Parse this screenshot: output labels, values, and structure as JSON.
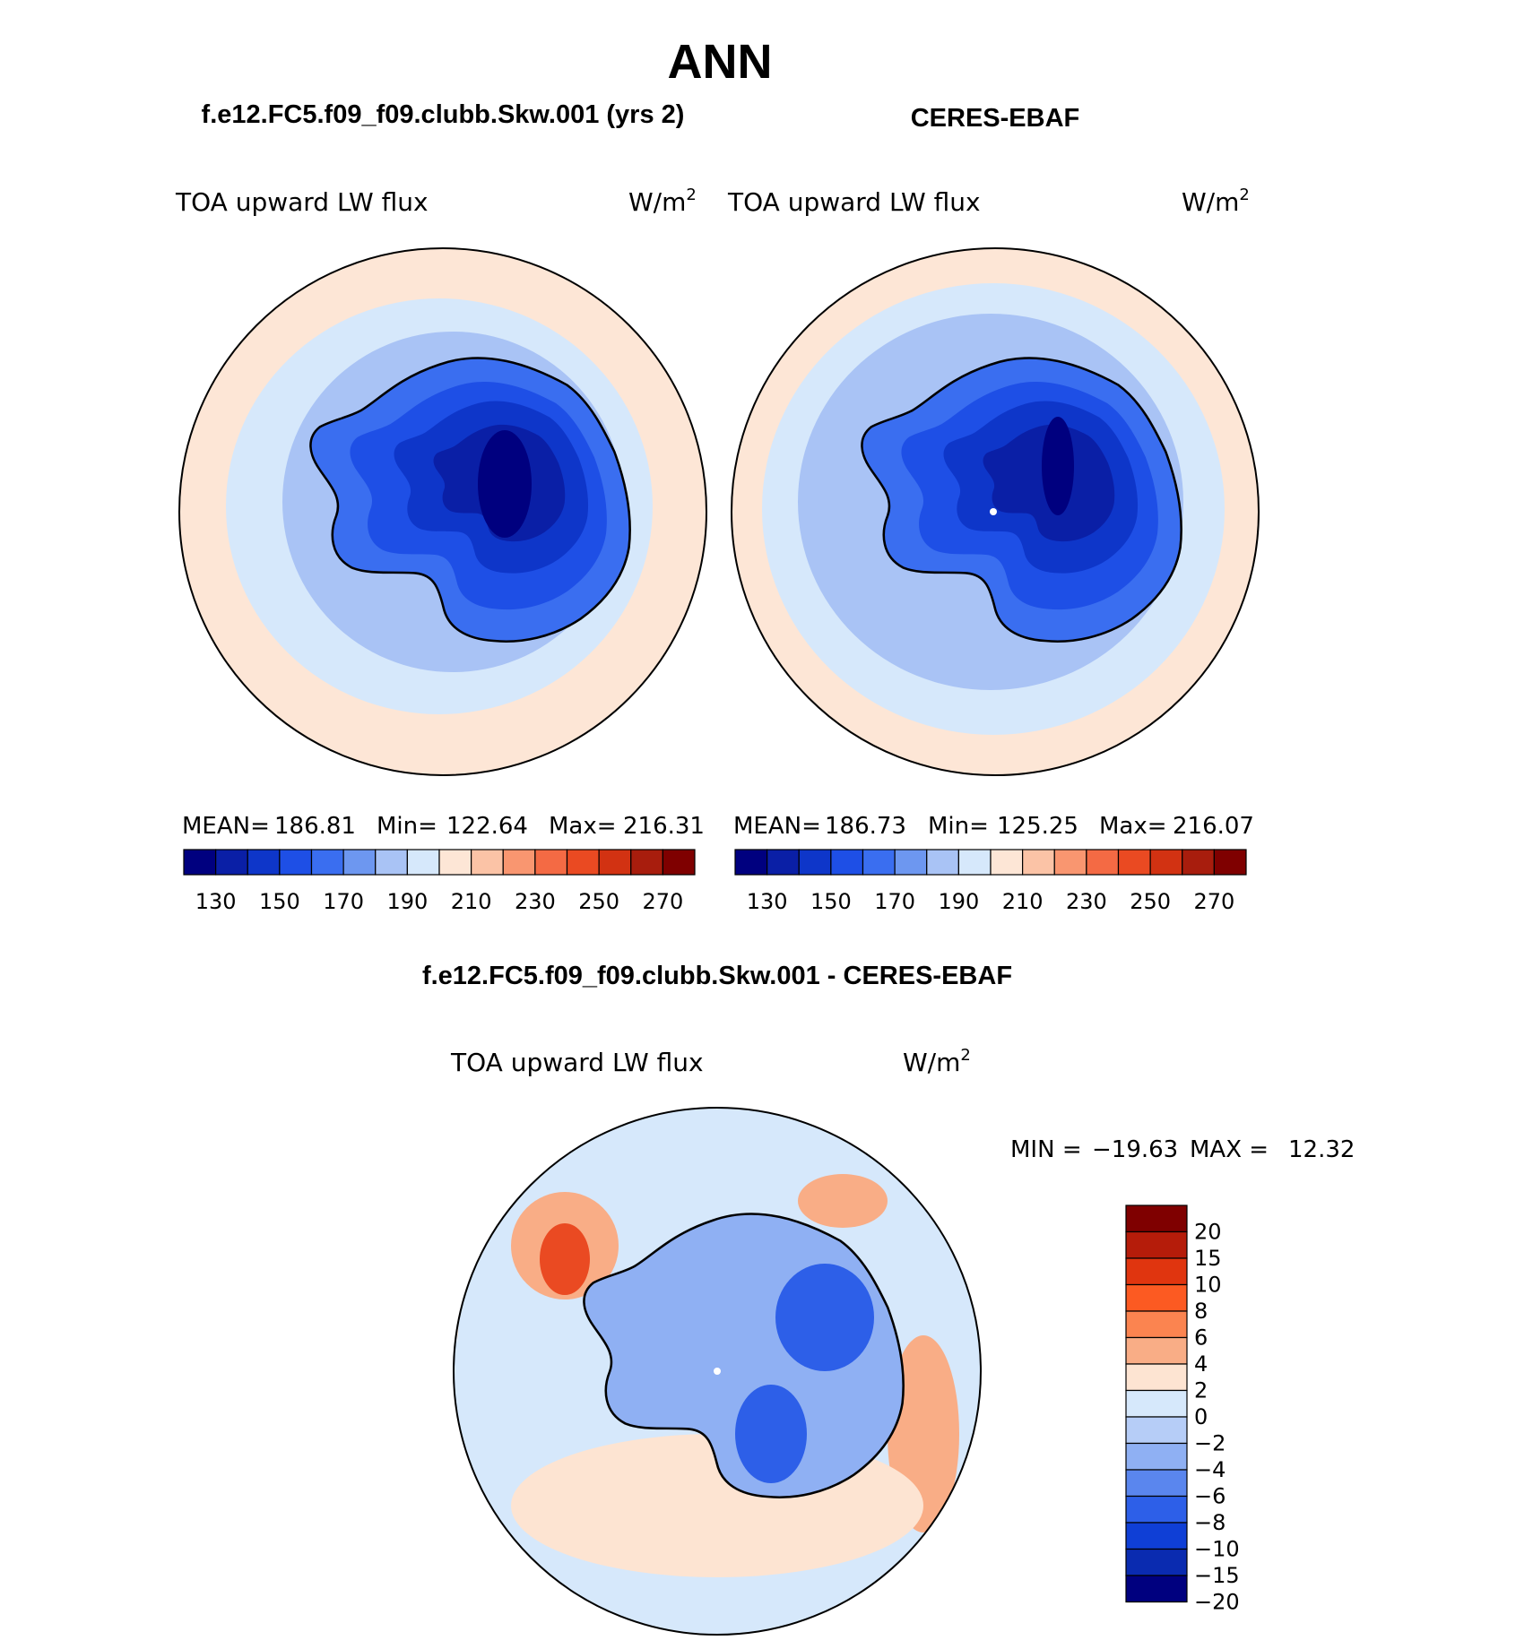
{
  "page": {
    "title": "ANN"
  },
  "panels": [
    {
      "id": "model",
      "heading": "f.e12.FC5.f09_f09.clubb.Skw.001 (yrs 2)",
      "variable": "TOA upward LW flux",
      "units_base": "W/m",
      "units_sup": "2",
      "stats": {
        "mean_label": "MEAN=",
        "mean": "186.81",
        "min_label": "Min=",
        "min": "122.64",
        "max_label": "Max=",
        "max": "216.31"
      }
    },
    {
      "id": "obs",
      "heading": "CERES-EBAF",
      "variable": "TOA upward LW flux",
      "units_base": "W/m",
      "units_sup": "2",
      "stats": {
        "mean_label": "MEAN=",
        "mean": "186.73",
        "min_label": "Min=",
        "min": "125.25",
        "max_label": "Max=",
        "max": "216.07"
      }
    }
  ],
  "colorbar_abs": {
    "colors": [
      "#00007f",
      "#0a1fa6",
      "#0e36c9",
      "#1e4fe6",
      "#3a6ef0",
      "#6d97f0",
      "#a9c3f5",
      "#d6e8fb",
      "#fde6d6",
      "#fbc3a6",
      "#f99670",
      "#f46a44",
      "#ea4a22",
      "#d23212",
      "#a81d0d",
      "#7f0000"
    ],
    "ticks": [
      "130",
      "150",
      "170",
      "190",
      "210",
      "230",
      "250",
      "270"
    ]
  },
  "difference": {
    "heading": "f.e12.FC5.f09_f09.clubb.Skw.001 - CERES-EBAF",
    "variable": "TOA upward LW flux",
    "units_base": "W/m",
    "units_sup": "2",
    "min_label": "MIN =",
    "min": "−19.63",
    "max_label": "MAX =",
    "max": "12.32"
  },
  "colorbar_diff": {
    "colors": [
      "#7f0000",
      "#b51c0a",
      "#e0350f",
      "#fc5a22",
      "#fb8450",
      "#f9ad86",
      "#fde4d2",
      "#d6e8fb",
      "#b6cdf7",
      "#8fb0f3",
      "#5a86ee",
      "#2d5fe8",
      "#0f3fd6",
      "#0a2bb0",
      "#00007f"
    ],
    "ticks": [
      "20",
      "15",
      "10",
      "8",
      "6",
      "4",
      "2",
      "0",
      "−2",
      "−4",
      "−6",
      "−8",
      "−10",
      "−15",
      "−20"
    ]
  },
  "map_palette": {
    "ocean_far": "#fde6d6",
    "ocean_mid": "#d6e8fb",
    "ocean_near": "#a9c3f5",
    "land_edge": "#3a6ef0",
    "land_mid": "#1e4fe6",
    "land_inner": "#0e36c9",
    "land_core": "#0a1fa6",
    "land_deep": "#00007f",
    "diff_positive": "#f9ad86",
    "diff_positive_strong": "#ea4a22",
    "diff_light_pos": "#fde4d2",
    "diff_light_neg": "#d6e8fb",
    "diff_neg": "#8fb0f3",
    "diff_neg_strong": "#2d5fe8"
  }
}
